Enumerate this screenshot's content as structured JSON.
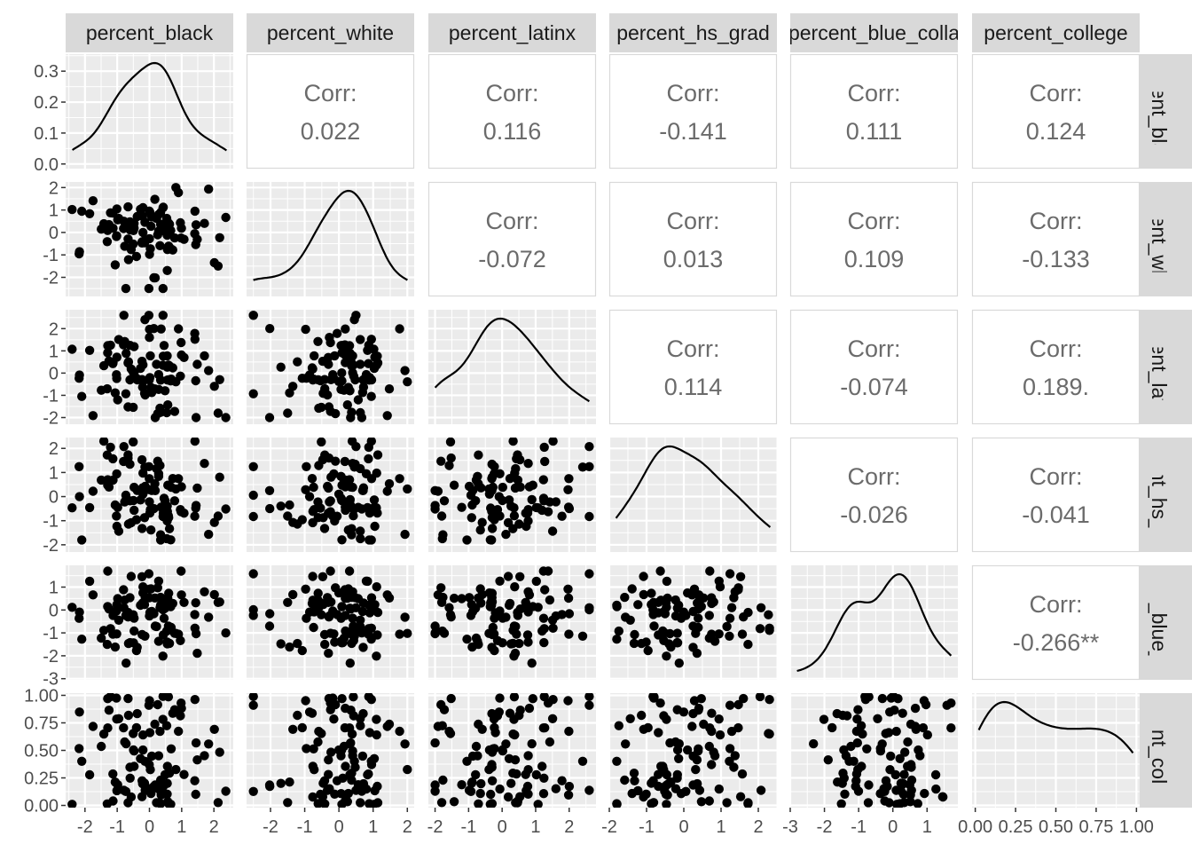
{
  "chart_data": {
    "type": "scatter",
    "title": "",
    "variables": [
      "percent_black",
      "percent_white",
      "percent_latinx",
      "percent_hs_grad",
      "percent_blue_collar",
      "percent_college"
    ],
    "strip_labels_top": [
      "percent_black",
      "percent_white",
      "percent_latinx",
      "percent_hs_grad",
      "percent_blue_colla",
      "percent_college"
    ],
    "strip_labels_right": [
      "percent_black",
      "percent_white",
      "percent_latinx",
      "percent_hs_grad",
      "percent_blue_collar",
      "percent_college"
    ],
    "corr_label": "Corr:",
    "correlations": [
      {
        "row": 0,
        "col": 1,
        "value": "0.022"
      },
      {
        "row": 0,
        "col": 2,
        "value": "0.116"
      },
      {
        "row": 0,
        "col": 3,
        "value": "-0.141"
      },
      {
        "row": 0,
        "col": 4,
        "value": "0.111"
      },
      {
        "row": 0,
        "col": 5,
        "value": "0.124"
      },
      {
        "row": 1,
        "col": 2,
        "value": "-0.072"
      },
      {
        "row": 1,
        "col": 3,
        "value": "0.013"
      },
      {
        "row": 1,
        "col": 4,
        "value": "0.109"
      },
      {
        "row": 1,
        "col": 5,
        "value": "-0.133"
      },
      {
        "row": 2,
        "col": 3,
        "value": "0.114"
      },
      {
        "row": 2,
        "col": 4,
        "value": "-0.074"
      },
      {
        "row": 2,
        "col": 5,
        "value": "0.189."
      },
      {
        "row": 3,
        "col": 4,
        "value": "-0.026"
      },
      {
        "row": 3,
        "col": 5,
        "value": "-0.041"
      },
      {
        "row": 4,
        "col": 5,
        "value": "-0.266**"
      }
    ],
    "x_axes": [
      {
        "range": [
          -2.6,
          2.6
        ],
        "ticks": [
          -2,
          -1,
          0,
          1,
          2
        ],
        "labels": [
          "-2",
          "-1",
          "0",
          "1",
          "2"
        ]
      },
      {
        "range": [
          -2.7,
          2.2
        ],
        "ticks": [
          -2,
          -1,
          0,
          1,
          2
        ],
        "labels": [
          "-2",
          "-1",
          "0",
          "1",
          "2"
        ]
      },
      {
        "range": [
          -2.2,
          2.8
        ],
        "ticks": [
          -2,
          -1,
          0,
          1,
          2
        ],
        "labels": [
          "-2",
          "-1",
          "0",
          "1",
          "2"
        ]
      },
      {
        "range": [
          -2.0,
          2.5
        ],
        "ticks": [
          -2,
          -1,
          0,
          1,
          2
        ],
        "labels": [
          "-2",
          "-1",
          "0",
          "1",
          "2"
        ]
      },
      {
        "range": [
          -3.0,
          1.9
        ],
        "ticks": [
          -3,
          -2,
          -1,
          0,
          1
        ],
        "labels": [
          "-3",
          "-2",
          "-1",
          "0",
          "1"
        ]
      },
      {
        "range": [
          -0.02,
          1.02
        ],
        "ticks": [
          0,
          0.25,
          0.5,
          0.75,
          1
        ],
        "labels": [
          "0.00",
          "0.25",
          "0.50",
          "0.75",
          "1.00"
        ]
      }
    ],
    "y_axes": [
      {
        "range": [
          -0.015,
          0.355
        ],
        "ticks": [
          0,
          0.1,
          0.2,
          0.3
        ],
        "labels": [
          "0.0",
          "0.1",
          "0.2",
          "0.3"
        ]
      },
      {
        "range": [
          -2.85,
          2.25
        ],
        "ticks": [
          -2,
          -1,
          0,
          1,
          2
        ],
        "labels": [
          "-2",
          "-1",
          "0",
          "1",
          "2"
        ]
      },
      {
        "range": [
          -2.3,
          2.85
        ],
        "ticks": [
          -2,
          -1,
          0,
          1,
          2
        ],
        "labels": [
          "-2",
          "-1",
          "0",
          "1",
          "2"
        ]
      },
      {
        "range": [
          -2.3,
          2.45
        ],
        "ticks": [
          -2,
          -1,
          0,
          1,
          2
        ],
        "labels": [
          "-2",
          "-1",
          "0",
          "1",
          "2"
        ]
      },
      {
        "range": [
          -3.05,
          1.95
        ],
        "ticks": [
          -3,
          -2,
          -1,
          0,
          1
        ],
        "labels": [
          "-3",
          "-2",
          "-1",
          "0",
          "1"
        ]
      },
      {
        "range": [
          -0.02,
          1.02
        ],
        "ticks": [
          0,
          0.25,
          0.5,
          0.75,
          1
        ],
        "labels": [
          "0.00",
          "0.25",
          "0.50",
          "0.75",
          "1.00"
        ]
      }
    ],
    "n_points": 100,
    "grid": true,
    "panel_background": "#ebebeb",
    "point_color": "#000000"
  }
}
